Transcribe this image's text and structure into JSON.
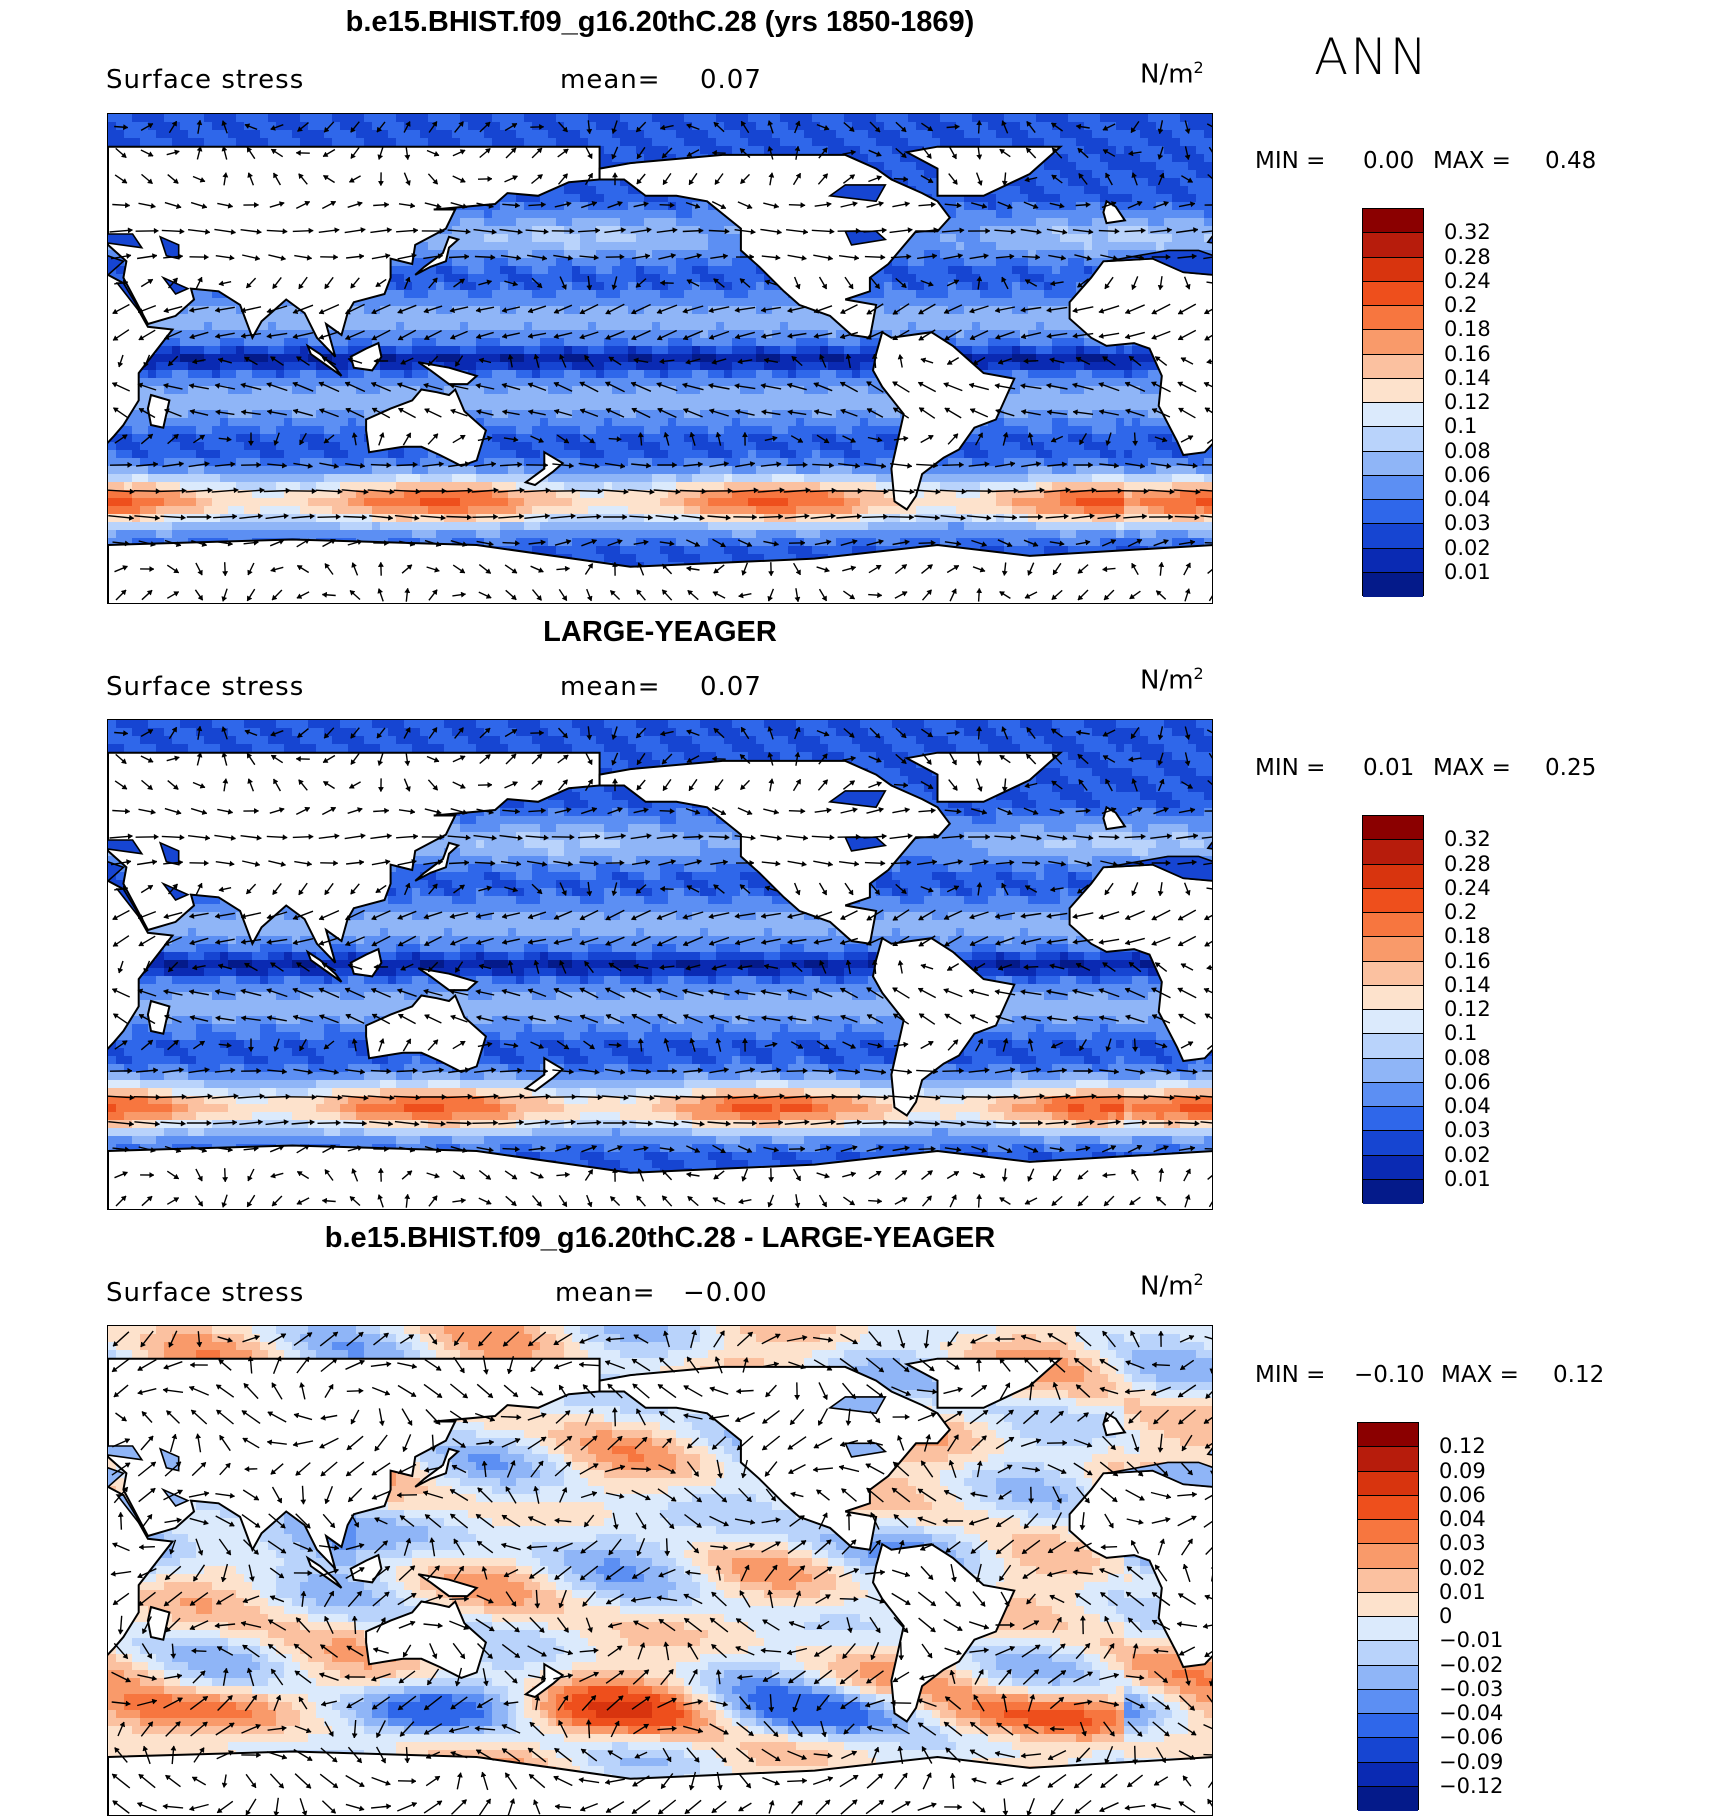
{
  "figure": {
    "season": "ANN"
  },
  "panels": [
    {
      "title": "b.e15.BHIST.f09_g16.20thC.28 (yrs 1850-1869)",
      "variable": "Surface stress",
      "mean_label": "mean=",
      "mean_value": "0.07",
      "units": "N/m",
      "units_sup": "2",
      "min_label": "MIN =",
      "min_value": "0.00",
      "max_label": "MAX =",
      "max_value": "0.48",
      "colorbar": {
        "levels": [
          "0.32",
          "0.28",
          "0.24",
          "0.2",
          "0.18",
          "0.16",
          "0.14",
          "0.12",
          "0.1",
          "0.08",
          "0.06",
          "0.04",
          "0.03",
          "0.02",
          "0.01"
        ],
        "colors": [
          "#8b0000",
          "#b71c0c",
          "#d8340e",
          "#ee4f1c",
          "#f7763f",
          "#f99a6a",
          "#fbc1a0",
          "#fde2cc",
          "#dbeafc",
          "#b9d3fb",
          "#8fb5f7",
          "#5c8ff3",
          "#2f67ea",
          "#1645d2",
          "#0a2ab3",
          "#041a8a"
        ]
      },
      "map": {
        "type": "vector-on-contour",
        "mode": "abs"
      }
    },
    {
      "title": "LARGE-YEAGER",
      "variable": "Surface stress",
      "mean_label": "mean=",
      "mean_value": "0.07",
      "units": "N/m",
      "units_sup": "2",
      "min_label": "MIN =",
      "min_value": "0.01",
      "max_label": "MAX =",
      "max_value": "0.25",
      "colorbar": {
        "levels": [
          "0.32",
          "0.28",
          "0.24",
          "0.2",
          "0.18",
          "0.16",
          "0.14",
          "0.12",
          "0.1",
          "0.08",
          "0.06",
          "0.04",
          "0.03",
          "0.02",
          "0.01"
        ],
        "colors": [
          "#8b0000",
          "#b71c0c",
          "#d8340e",
          "#ee4f1c",
          "#f7763f",
          "#f99a6a",
          "#fbc1a0",
          "#fde2cc",
          "#dbeafc",
          "#b9d3fb",
          "#8fb5f7",
          "#5c8ff3",
          "#2f67ea",
          "#1645d2",
          "#0a2ab3",
          "#041a8a"
        ]
      },
      "map": {
        "type": "vector-on-contour",
        "mode": "abs"
      }
    },
    {
      "title": "b.e15.BHIST.f09_g16.20thC.28 - LARGE-YEAGER",
      "variable": "Surface stress",
      "mean_label": "mean=",
      "mean_value": "−0.00",
      "units": "N/m",
      "units_sup": "2",
      "min_label": "MIN =",
      "min_value": "−0.10",
      "max_label": "MAX =",
      "max_value": "0.12",
      "colorbar": {
        "levels": [
          "0.12",
          "0.09",
          "0.06",
          "0.04",
          "0.03",
          "0.02",
          "0.01",
          "0",
          "−0.01",
          "−0.02",
          "−0.03",
          "−0.04",
          "−0.06",
          "−0.09",
          "−0.12"
        ],
        "colors": [
          "#8b0000",
          "#b71c0c",
          "#d8340e",
          "#ee4f1c",
          "#f7763f",
          "#f99a6a",
          "#fbc1a0",
          "#fde2cc",
          "#dbeafc",
          "#b9d3fb",
          "#8fb5f7",
          "#5c8ff3",
          "#2f67ea",
          "#1645d2",
          "#0a2ab3",
          "#041a8a"
        ]
      },
      "map": {
        "type": "vector-on-contour",
        "mode": "diff"
      }
    }
  ]
}
